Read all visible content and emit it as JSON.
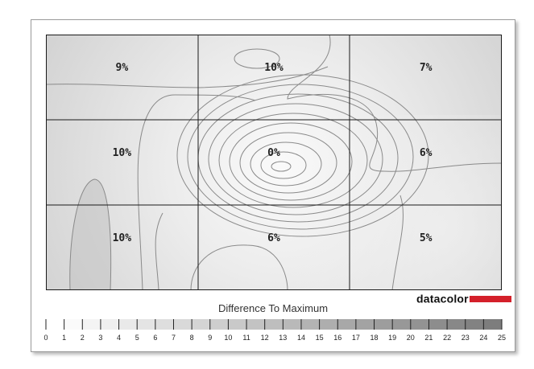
{
  "chart_data": {
    "type": "heatmap",
    "grid": {
      "rows": 3,
      "cols": 3
    },
    "cells": [
      [
        "9%",
        "10%",
        "7%"
      ],
      [
        "10%",
        "0%",
        "6%"
      ],
      [
        "10%",
        "6%",
        "5%"
      ]
    ],
    "values": [
      [
        9,
        10,
        7
      ],
      [
        10,
        0,
        6
      ],
      [
        10,
        6,
        5
      ]
    ],
    "colorbar": {
      "title": "Difference To Maximum",
      "min": 0,
      "max": 25,
      "ticks": [
        "0",
        "1",
        "2",
        "3",
        "4",
        "5",
        "6",
        "7",
        "8",
        "9",
        "10",
        "11",
        "12",
        "13",
        "14",
        "15",
        "16",
        "17",
        "18",
        "19",
        "20",
        "21",
        "22",
        "23",
        "24",
        "25"
      ]
    },
    "colors": {
      "low": "#ffffff",
      "high": "#7a7a7a",
      "contour": "#8a8a8a",
      "grid": "#1a1a1a"
    }
  },
  "logo": {
    "text": "datacolor",
    "color": "#d4202a"
  }
}
